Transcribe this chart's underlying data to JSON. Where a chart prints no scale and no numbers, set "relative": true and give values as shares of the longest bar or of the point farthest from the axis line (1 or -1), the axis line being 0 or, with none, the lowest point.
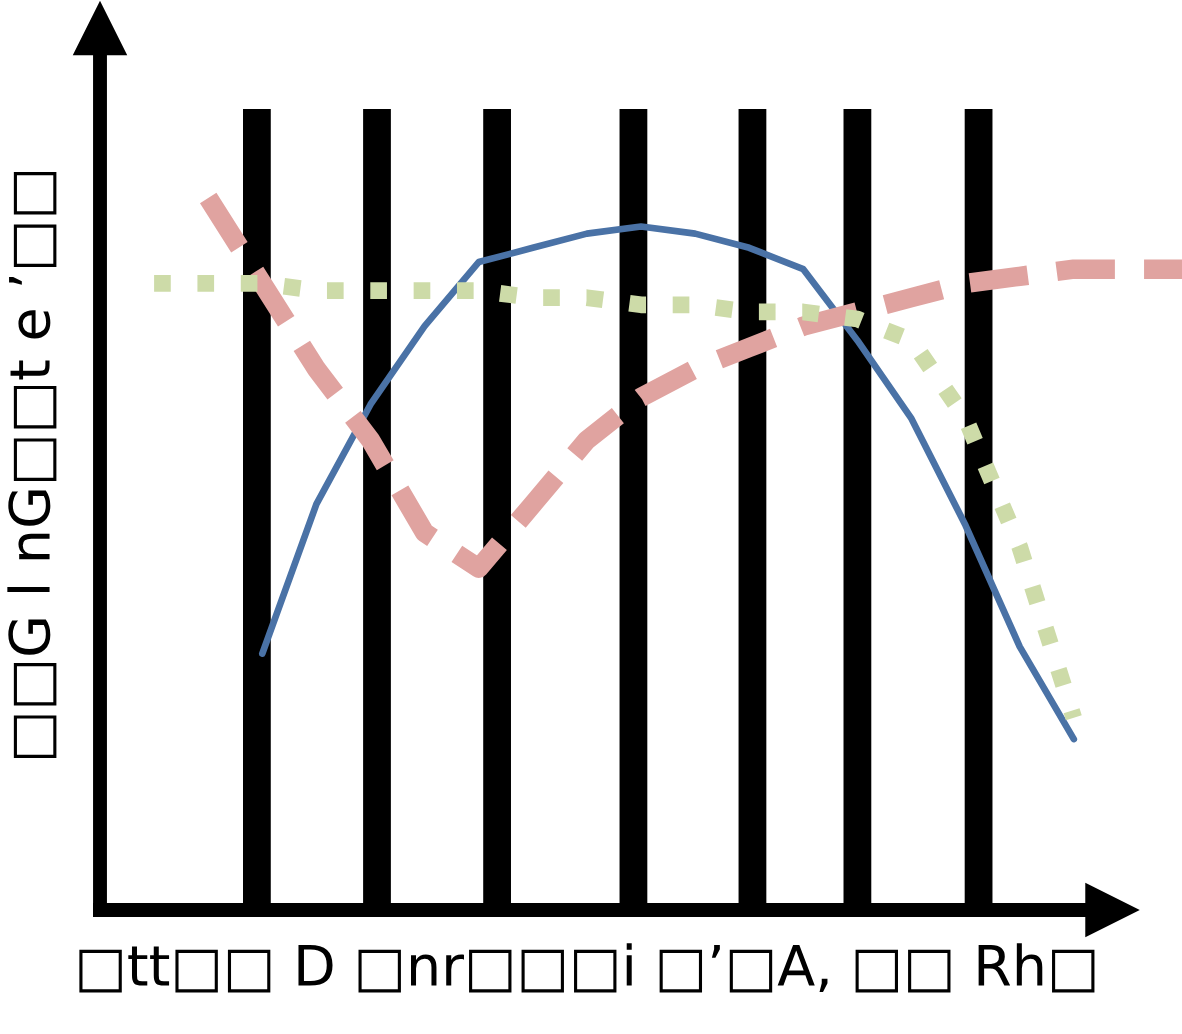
{
  "chart_data": {
    "type": "line",
    "relative": true,
    "xlabel": "□tt□□ D □nr□□□i □’□A, □□ Rh□",
    "ylabel": "□□G l nG□□t e ’□□",
    "categories": [
      null,
      null,
      null,
      null,
      null,
      null,
      null,
      null,
      null,
      null,
      null,
      null,
      null,
      null,
      null,
      null,
      null,
      null,
      null,
      null,
      null
    ],
    "series": [
      {
        "color": "#4a72a6",
        "line_style": "solid",
        "values": [
          null,
          null,
          null,
          0.36,
          0.57,
          0.71,
          0.82,
          0.91,
          0.93,
          0.95,
          0.96,
          0.95,
          0.93,
          0.9,
          0.8,
          0.69,
          0.54,
          0.37,
          0.24,
          null,
          null
        ]
      },
      {
        "color": "#e0a3a0",
        "line_style": "dashed",
        "values": [
          null,
          null,
          1.0,
          0.88,
          0.76,
          0.66,
          0.53,
          0.48,
          0.57,
          0.66,
          0.72,
          0.76,
          0.79,
          0.82,
          0.84,
          0.86,
          0.88,
          0.89,
          0.9,
          0.9,
          0.9
        ]
      },
      {
        "color": "#cddba8",
        "line_style": "dotted",
        "values": [
          null,
          0.88,
          0.88,
          0.88,
          0.87,
          0.87,
          0.87,
          0.87,
          0.86,
          0.86,
          0.85,
          0.85,
          0.84,
          0.84,
          0.83,
          0.8,
          0.69,
          0.51,
          0.27,
          null,
          null
        ]
      }
    ]
  }
}
